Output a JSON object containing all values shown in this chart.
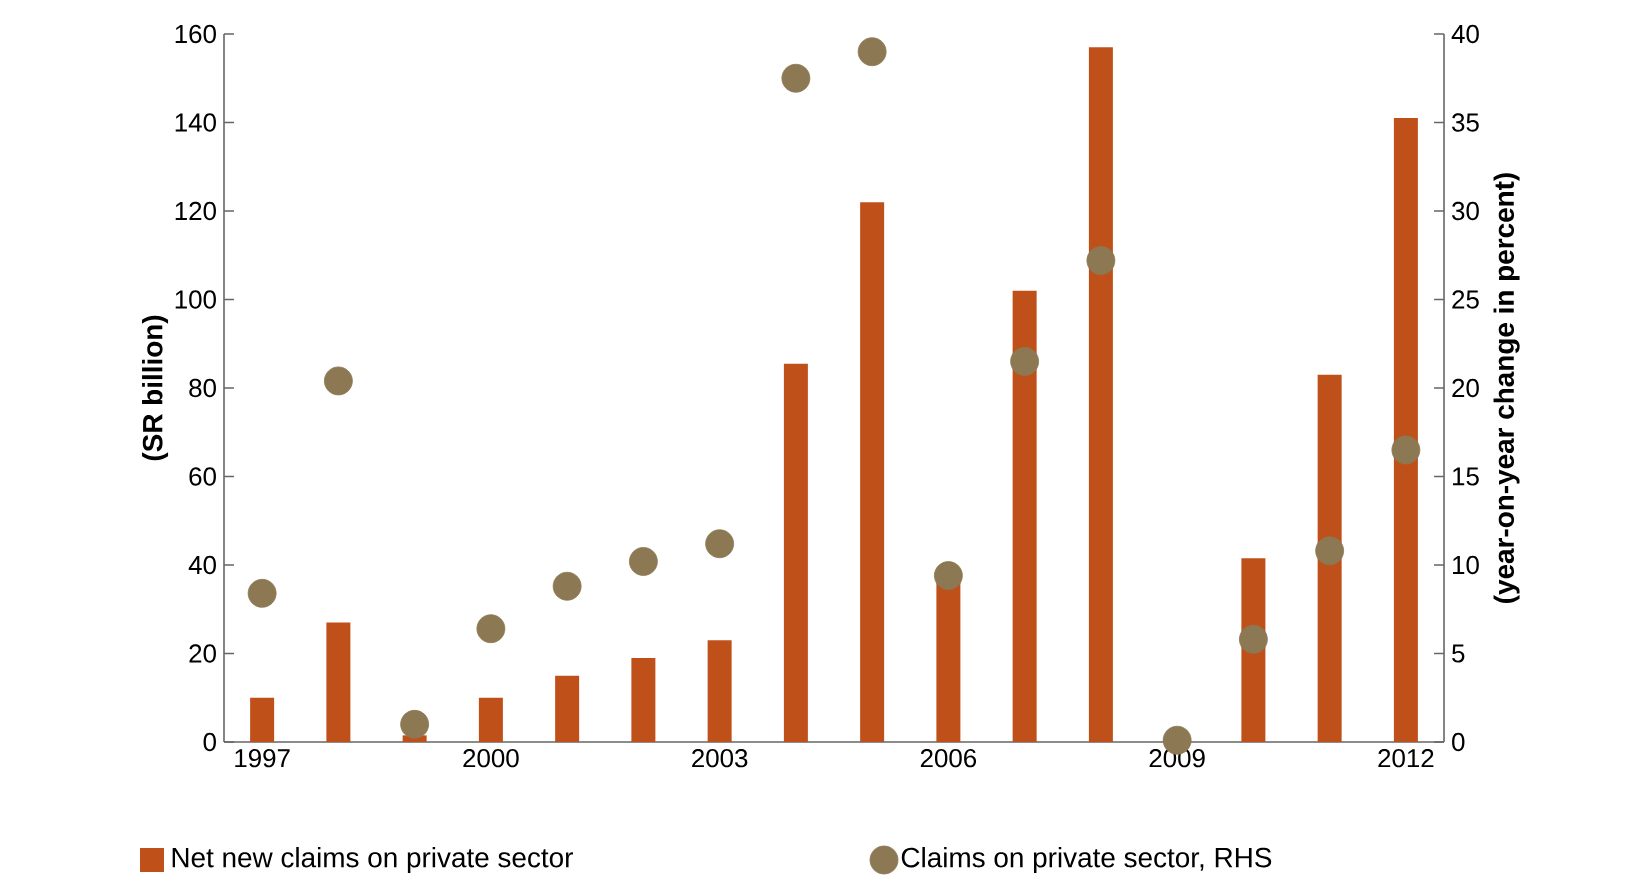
{
  "chart_data": {
    "type": "bar",
    "ylabel": "(SR billion)",
    "y2label": "(year-on-year change in percent)",
    "categories": [
      "1997",
      null,
      null,
      "2000",
      null,
      null,
      "2003",
      null,
      null,
      "2006",
      null,
      null,
      "2009",
      null,
      null,
      "2012"
    ],
    "series": [
      {
        "name": "Net new claims on private sector",
        "color": "#c0501a",
        "values": [
          10,
          27,
          1.5,
          10,
          15,
          19,
          23,
          85.5,
          122,
          37,
          102,
          157,
          null,
          41.5,
          83,
          141
        ]
      },
      {
        "name": "Claims on private sector, RHS",
        "color": "#8c7853",
        "type": "scatter",
        "axis": "y2",
        "marker": "circle",
        "values": [
          8.4,
          20.4,
          1.0,
          6.4,
          8.8,
          10.2,
          11.2,
          37.5,
          39,
          9.4,
          21.5,
          27.2,
          0.1,
          5.8,
          10.8,
          16.5
        ]
      }
    ],
    "ylim": [
      0,
      160
    ],
    "yticks": [
      0,
      20,
      40,
      60,
      80,
      100,
      120,
      140,
      160
    ],
    "y2lim": [
      0,
      40
    ],
    "y2ticks": [
      0,
      5,
      10,
      15,
      20,
      25,
      30,
      35,
      40
    ],
    "grid": false,
    "legend": "bottom"
  }
}
